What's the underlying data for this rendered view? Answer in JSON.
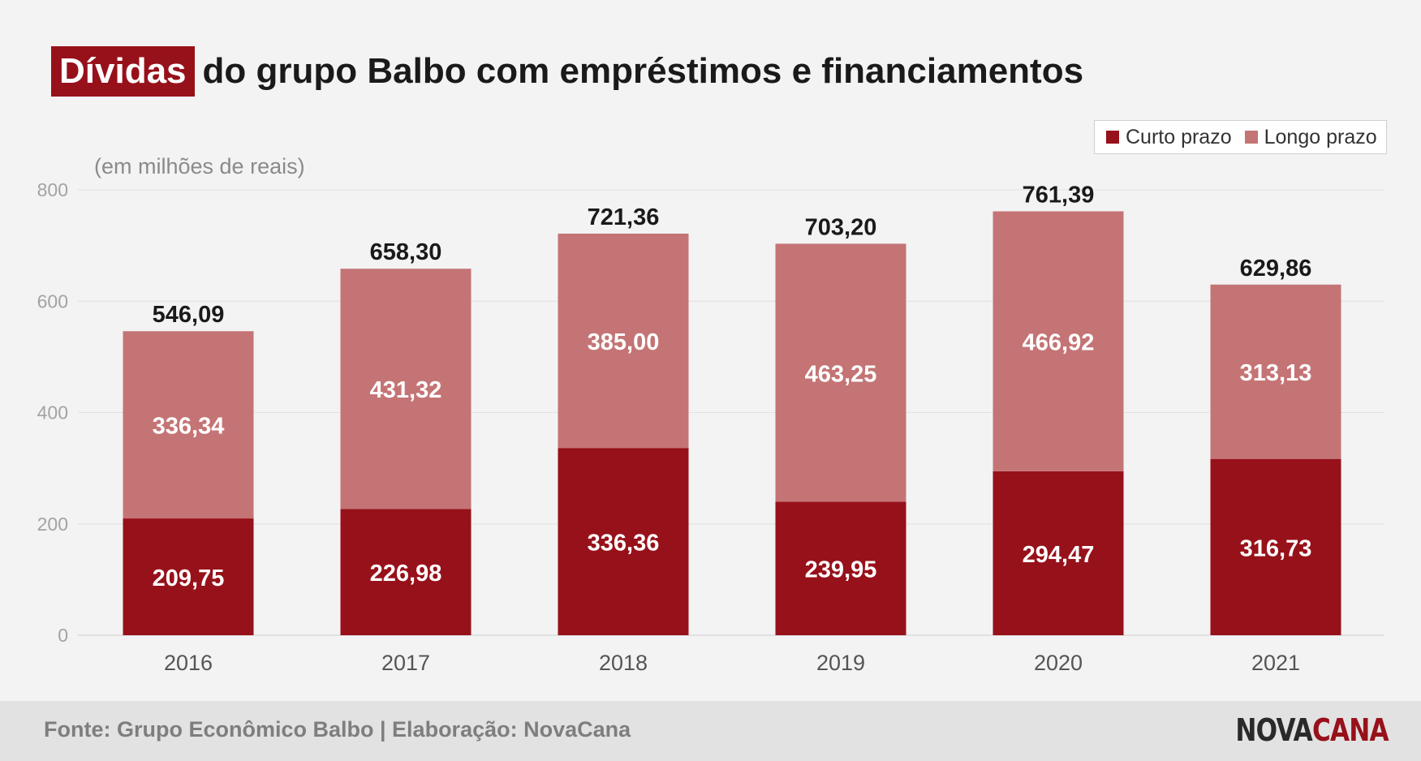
{
  "header": {
    "title_highlight": "Dívidas",
    "title_rest": "do grupo Balbo com empréstimos e financiamentos"
  },
  "legend": {
    "items": [
      {
        "label": "Curto prazo",
        "color": "#97111a"
      },
      {
        "label": "Longo prazo",
        "color": "#c47475"
      }
    ]
  },
  "footer": {
    "source": "Fonte: Grupo Econômico Balbo | Elaboração: NovaCana",
    "logo_part1": "NOVA",
    "logo_part2": "CANA"
  },
  "chart_data": {
    "type": "bar",
    "stacked": true,
    "title": "Dívidas do grupo Balbo com empréstimos e financiamentos",
    "ylabel": "(em milhões de reais)",
    "xlabel": "",
    "ylim": [
      0,
      800
    ],
    "yticks": [
      0,
      200,
      400,
      600,
      800
    ],
    "grid": true,
    "legend_position": "top-right",
    "categories": [
      "2016",
      "2017",
      "2018",
      "2019",
      "2020",
      "2021"
    ],
    "series": [
      {
        "name": "Curto prazo",
        "color": "#97111a",
        "values": [
          209.75,
          226.98,
          336.36,
          239.95,
          294.47,
          316.73
        ],
        "labels": [
          "209,75",
          "226,98",
          "336,36",
          "239,95",
          "294,47",
          "316,73"
        ]
      },
      {
        "name": "Longo prazo",
        "color": "#c47475",
        "values": [
          336.34,
          431.32,
          385.0,
          463.25,
          466.92,
          313.13
        ],
        "labels": [
          "336,34",
          "431,32",
          "385,00",
          "463,25",
          "466,92",
          "313,13"
        ]
      }
    ],
    "totals": [
      546.09,
      658.3,
      721.36,
      703.2,
      761.39,
      629.86
    ],
    "total_labels": [
      "546,09",
      "658,30",
      "721,36",
      "703,20",
      "761,39",
      "629,86"
    ]
  }
}
